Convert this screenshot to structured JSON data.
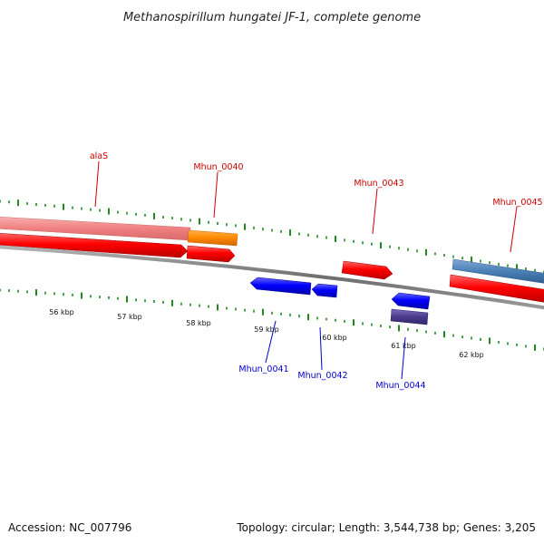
{
  "title": "Methanospirillum hungatei JF-1, complete genome",
  "footer": {
    "accession": "Accession: NC_007796",
    "summary": "Topology: circular; Length: 3,544,738 bp; Genes: 3,205"
  },
  "colors": {
    "backbone": "#7a7a7a",
    "tick": "#1f8a1f",
    "label_forward": "#cc0000",
    "label_reverse": "#0000cc"
  },
  "scale_labels": [
    "56 kbp",
    "57 kbp",
    "58 kbp",
    "59 kbp",
    "60 kbp",
    "61 kbp",
    "62 kbp"
  ],
  "features": [
    {
      "name": "alaS",
      "strand": "forward",
      "track": "rna",
      "color": "#f08080"
    },
    {
      "name": "alaS-cds",
      "strand": "forward",
      "track": "cds",
      "color": "#ff0000"
    },
    {
      "name": "Mhun_0040",
      "strand": "forward",
      "track": "rna",
      "color": "#ff8800"
    },
    {
      "name": "Mhun_0040-cds",
      "strand": "forward",
      "track": "cds",
      "color": "#ff0000"
    },
    {
      "name": "Mhun_0041",
      "strand": "reverse",
      "track": "cds",
      "color": "#0000ff"
    },
    {
      "name": "Mhun_0042",
      "strand": "reverse",
      "track": "cds",
      "color": "#0000ff"
    },
    {
      "name": "Mhun_0043",
      "strand": "forward",
      "track": "cds",
      "color": "#ff0000"
    },
    {
      "name": "Mhun_0044",
      "strand": "reverse",
      "track": "cds",
      "color": "#0000ff"
    },
    {
      "name": "Mhun_0044-rna",
      "strand": "reverse",
      "track": "rna",
      "color": "#4b3a8c"
    },
    {
      "name": "Mhun_0045",
      "strand": "forward",
      "track": "rna",
      "color": "#4a7fb5"
    },
    {
      "name": "Mhun_0045-cds",
      "strand": "forward",
      "track": "cds",
      "color": "#ff0000"
    }
  ],
  "labels": [
    {
      "text": "alaS",
      "strand": "forward"
    },
    {
      "text": "Mhun_0040",
      "strand": "forward"
    },
    {
      "text": "Mhun_0043",
      "strand": "forward"
    },
    {
      "text": "Mhun_0045",
      "strand": "forward"
    },
    {
      "text": "Mhun_0041",
      "strand": "reverse"
    },
    {
      "text": "Mhun_0042",
      "strand": "reverse"
    },
    {
      "text": "Mhun_0044",
      "strand": "reverse"
    }
  ]
}
